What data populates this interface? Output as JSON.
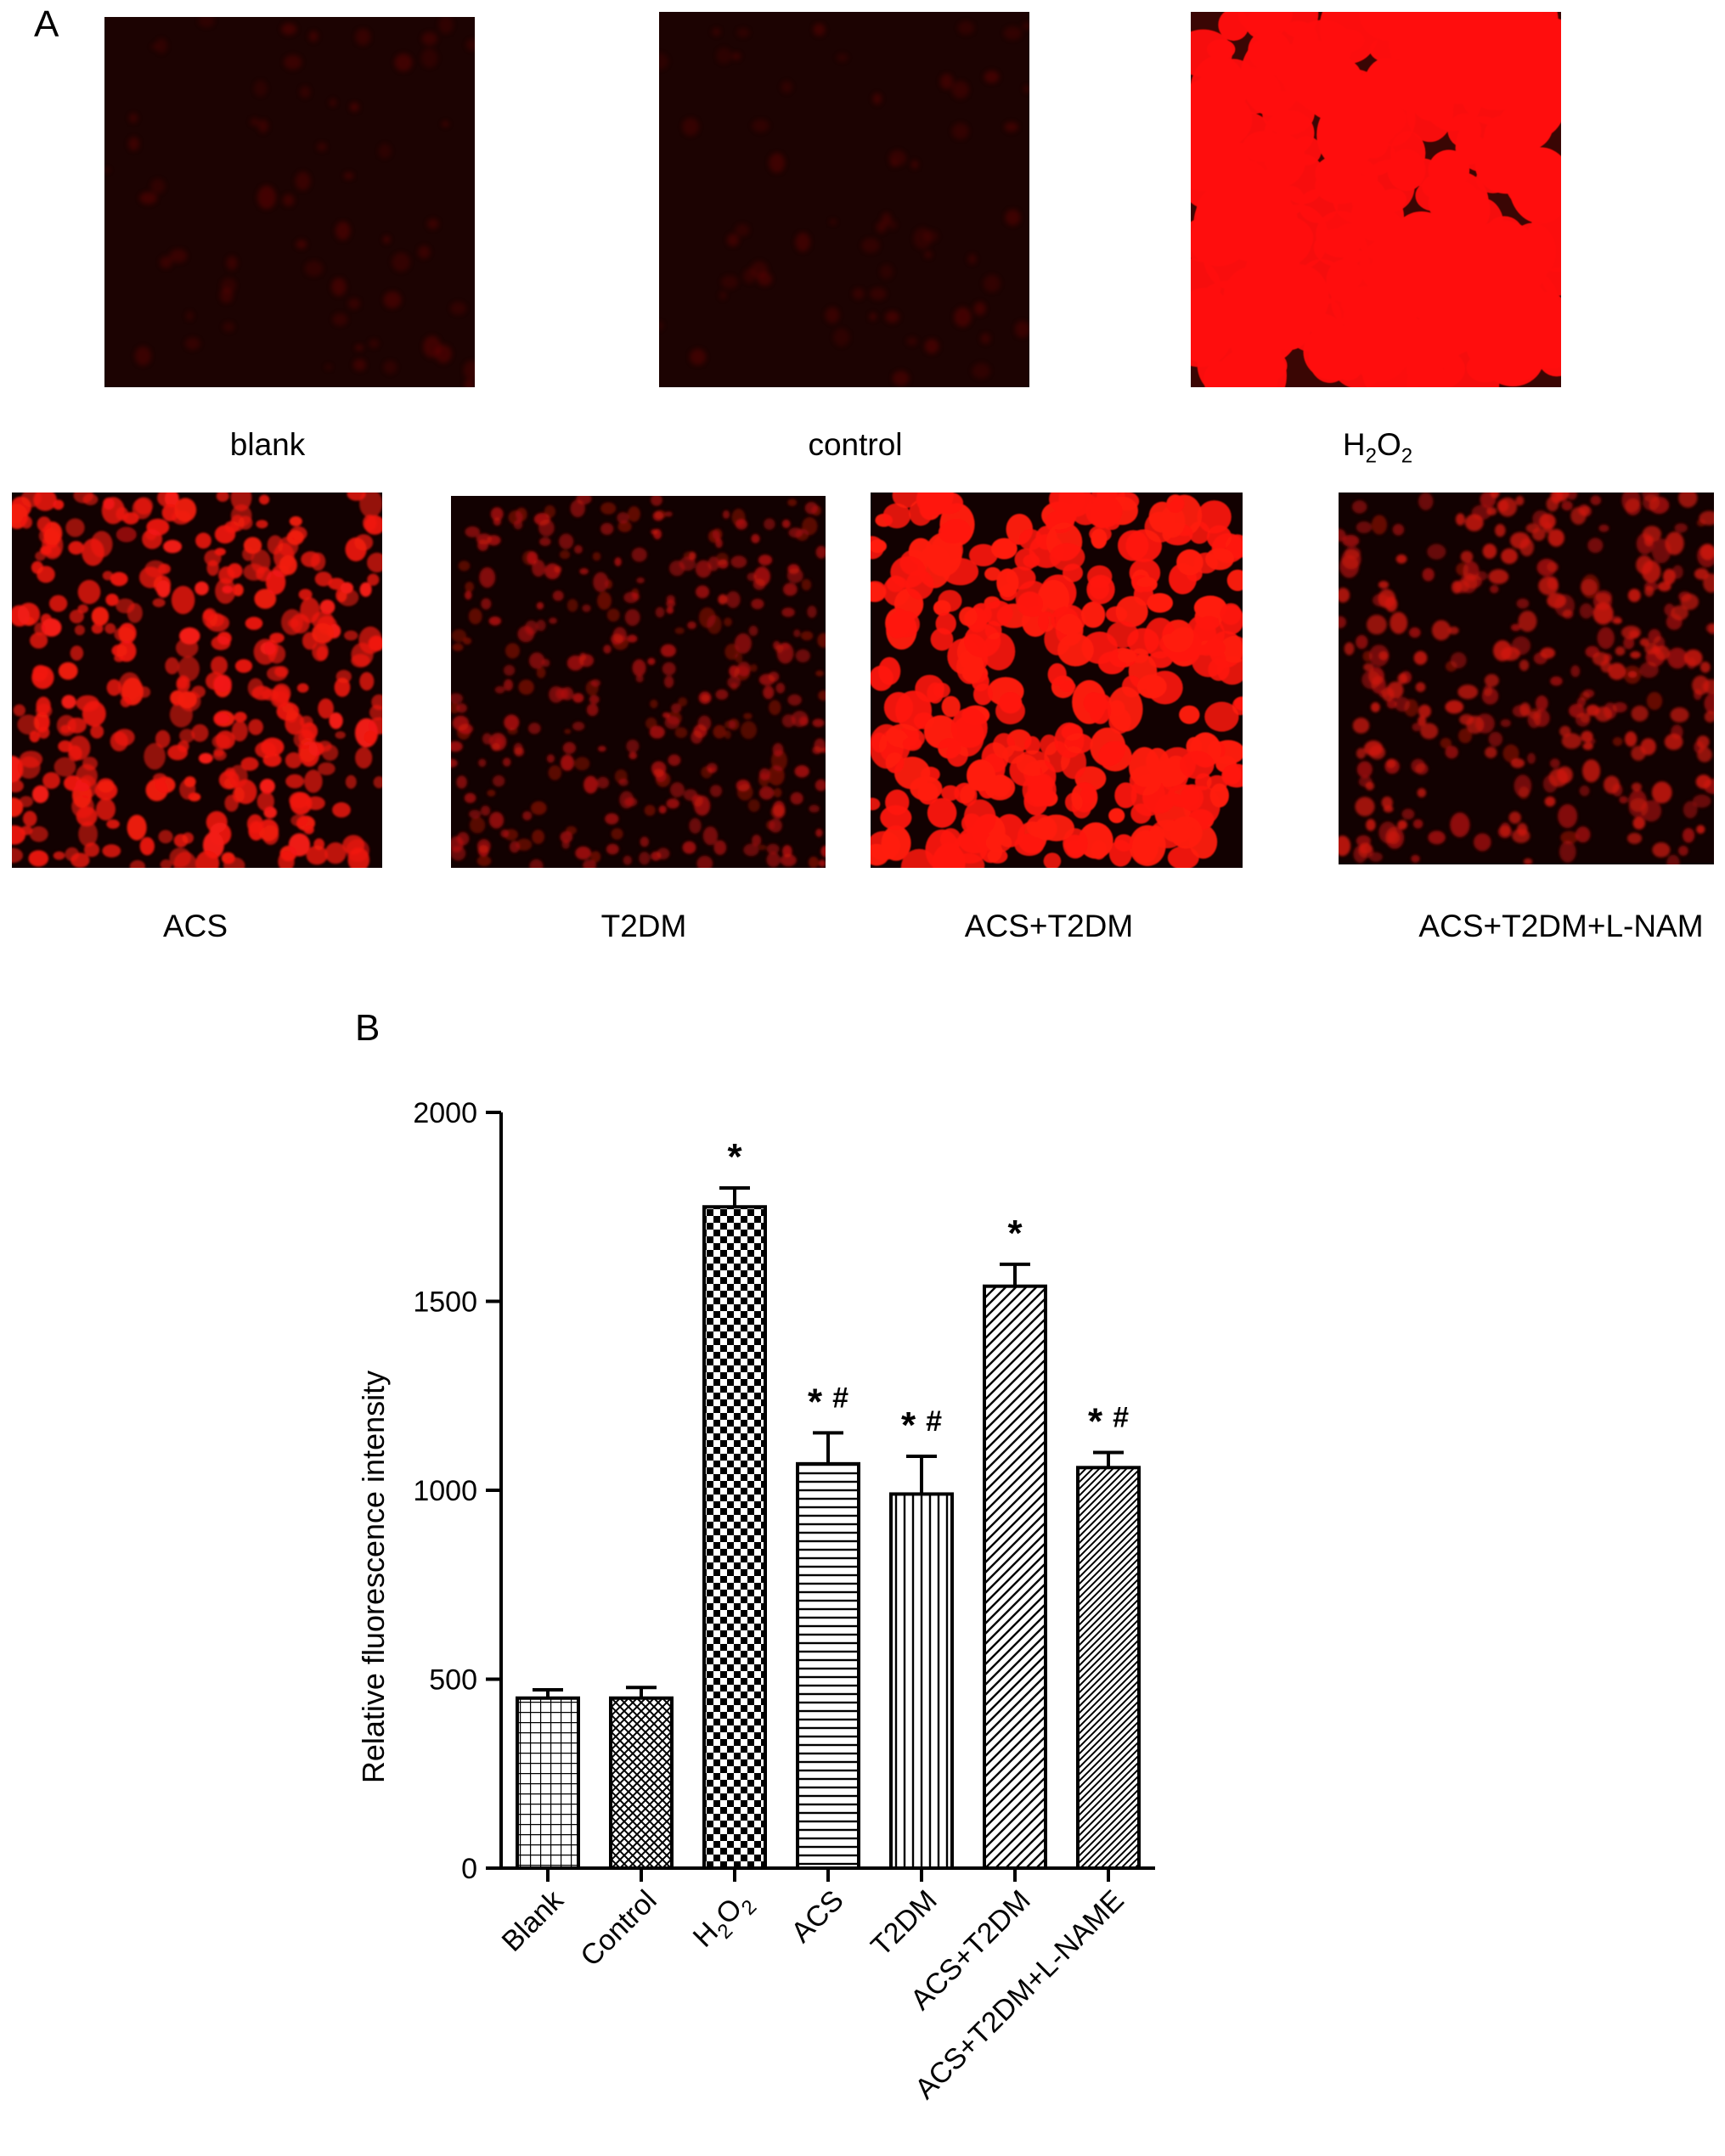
{
  "panel_a": {
    "letter": "A",
    "images": [
      {
        "id": "blank",
        "label": "blank",
        "intensity": "dim"
      },
      {
        "id": "control",
        "label": "control",
        "intensity": "dim"
      },
      {
        "id": "h2o2",
        "label": "H",
        "label_sub1": "2",
        "label_mid": "O",
        "label_sub2": "2",
        "intensity": "very-high"
      },
      {
        "id": "acs",
        "label": "ACS",
        "intensity": "medium"
      },
      {
        "id": "t2dm",
        "label": "T2DM",
        "intensity": "low"
      },
      {
        "id": "acs_t2dm",
        "label": "ACS+T2DM",
        "intensity": "high"
      },
      {
        "id": "acs_t2dm_lnam",
        "label": "ACS+T2DM+L-NAM",
        "intensity": "low-medium"
      }
    ]
  },
  "chart_data": {
    "panel_letter": "B",
    "type": "bar",
    "categories": [
      "Blank",
      "Control",
      "H2O2",
      "ACS",
      "T2DM",
      "ACS+T2DM",
      "ACS+T2DM+L-NAME"
    ],
    "values": [
      450,
      450,
      1750,
      1070,
      990,
      1540,
      1060
    ],
    "errors": [
      22,
      28,
      50,
      82,
      100,
      58,
      40
    ],
    "annotations": [
      "",
      "",
      "*",
      "* #",
      "* #",
      "*",
      "* #"
    ],
    "patterns": [
      "grid",
      "crosshatch",
      "checker",
      "horizontal",
      "vertical",
      "diagonal",
      "diagonal-fine"
    ],
    "ylabel": "Relative fluorescence intensity",
    "xlabel": "",
    "ylim": [
      0,
      2000
    ],
    "yticks": [
      0,
      500,
      1000,
      1500,
      2000
    ],
    "grid": false
  }
}
